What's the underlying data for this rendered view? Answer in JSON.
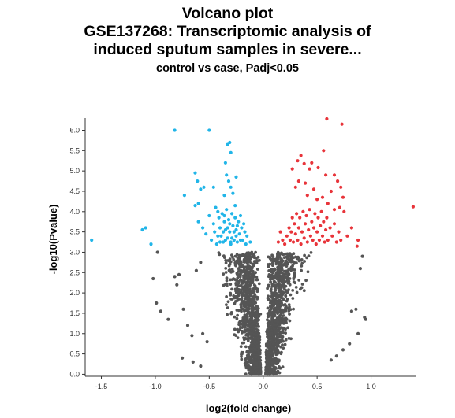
{
  "chart_data": {
    "type": "scatter",
    "title_lines": [
      "Volcano plot",
      "GSE137268: Transcriptomic analysis of",
      "induced sputum samples in severe..."
    ],
    "subtitle": "control vs case, Padj<0.05",
    "xlabel": "log2(fold change)",
    "ylabel": "-log10(Pvalue)",
    "xlim": [
      -1.65,
      1.42
    ],
    "ylim": [
      -0.05,
      6.3
    ],
    "x_ticks": [
      "-1.5",
      "-1.0",
      "-0.5",
      "0.0",
      "0.5",
      "1.0"
    ],
    "y_ticks": [
      "0.0",
      "0.5",
      "1.0",
      "1.5",
      "2.0",
      "2.5",
      "3.0",
      "3.5",
      "4.0",
      "4.5",
      "5.0",
      "5.5",
      "6.0"
    ],
    "series": [
      {
        "color": "#21b5e8",
        "points": [
          [
            -1.59,
            3.3
          ],
          [
            -1.12,
            3.55
          ],
          [
            -1.09,
            3.6
          ],
          [
            -1.04,
            3.2
          ],
          [
            -0.82,
            6.0
          ],
          [
            -0.5,
            6.0
          ],
          [
            -0.73,
            4.4
          ],
          [
            -0.63,
            4.95
          ],
          [
            -0.61,
            4.75
          ],
          [
            -0.58,
            4.55
          ],
          [
            -0.55,
            4.6
          ],
          [
            -0.63,
            4.15
          ],
          [
            -0.6,
            4.2
          ],
          [
            -0.46,
            4.6
          ],
          [
            -0.44,
            4.1
          ],
          [
            -0.42,
            4.0
          ],
          [
            -0.34,
            4.9
          ],
          [
            -0.32,
            4.75
          ],
          [
            -0.3,
            4.6
          ],
          [
            -0.36,
            4.4
          ],
          [
            -0.35,
            5.2
          ],
          [
            -0.33,
            5.65
          ],
          [
            -0.31,
            5.7
          ],
          [
            -0.3,
            5.45
          ],
          [
            -0.28,
            4.45
          ],
          [
            -0.26,
            4.15
          ],
          [
            -0.25,
            4.85
          ],
          [
            -0.6,
            3.75
          ],
          [
            -0.56,
            3.6
          ],
          [
            -0.53,
            3.45
          ],
          [
            -0.5,
            3.9
          ],
          [
            -0.48,
            3.3
          ],
          [
            -0.46,
            3.7
          ],
          [
            -0.45,
            3.5
          ],
          [
            -0.43,
            3.2
          ],
          [
            -0.41,
            3.85
          ],
          [
            -0.4,
            3.6
          ],
          [
            -0.39,
            3.4
          ],
          [
            -0.38,
            3.95
          ],
          [
            -0.37,
            3.25
          ],
          [
            -0.36,
            3.75
          ],
          [
            -0.35,
            3.55
          ],
          [
            -0.34,
            4.05
          ],
          [
            -0.33,
            3.35
          ],
          [
            -0.32,
            3.8
          ],
          [
            -0.31,
            3.5
          ],
          [
            -0.3,
            3.2
          ],
          [
            -0.29,
            3.95
          ],
          [
            -0.28,
            3.65
          ],
          [
            -0.27,
            3.3
          ],
          [
            -0.26,
            3.85
          ],
          [
            -0.25,
            3.55
          ],
          [
            -0.24,
            3.25
          ],
          [
            -0.23,
            3.75
          ],
          [
            -0.22,
            3.45
          ],
          [
            -0.21,
            3.9
          ],
          [
            -0.2,
            3.6
          ],
          [
            -0.19,
            3.3
          ],
          [
            -0.18,
            3.7
          ],
          [
            -0.17,
            3.5
          ],
          [
            -0.16,
            3.2
          ],
          [
            -0.15,
            3.4
          ],
          [
            -0.12,
            3.25
          ],
          [
            -0.3,
            3.25
          ],
          [
            -0.35,
            3.3
          ],
          [
            -0.42,
            3.4
          ],
          [
            -0.27,
            3.5
          ],
          [
            -0.33,
            3.6
          ],
          [
            -0.25,
            3.4
          ],
          [
            -0.37,
            3.5
          ],
          [
            -0.21,
            3.3
          ],
          [
            -0.4,
            3.25
          ],
          [
            -0.31,
            3.7
          ],
          [
            -0.29,
            3.35
          ],
          [
            -0.36,
            3.9
          ],
          [
            -0.24,
            3.65
          ]
        ]
      },
      {
        "color": "#e8343a",
        "points": [
          [
            0.59,
            6.28
          ],
          [
            0.73,
            6.15
          ],
          [
            0.56,
            5.5
          ],
          [
            0.45,
            5.2
          ],
          [
            0.43,
            5.05
          ],
          [
            0.51,
            5.08
          ],
          [
            0.58,
            4.9
          ],
          [
            0.66,
            4.9
          ],
          [
            0.27,
            5.05
          ],
          [
            0.32,
            5.25
          ],
          [
            0.35,
            5.38
          ],
          [
            0.38,
            5.18
          ],
          [
            0.3,
            4.6
          ],
          [
            0.33,
            4.75
          ],
          [
            0.39,
            4.7
          ],
          [
            0.41,
            4.4
          ],
          [
            0.47,
            4.55
          ],
          [
            0.5,
            4.3
          ],
          [
            0.55,
            4.35
          ],
          [
            0.6,
            4.2
          ],
          [
            0.63,
            4.5
          ],
          [
            0.69,
            4.75
          ],
          [
            0.72,
            4.6
          ],
          [
            0.74,
            4.35
          ],
          [
            0.71,
            4.1
          ],
          [
            0.66,
            4.05
          ],
          [
            0.75,
            4.0
          ],
          [
            0.88,
            3.3
          ],
          [
            0.87,
            3.15
          ],
          [
            1.39,
            4.12
          ],
          [
            0.82,
            3.6
          ],
          [
            0.78,
            3.4
          ],
          [
            0.2,
            3.2
          ],
          [
            0.22,
            3.4
          ],
          [
            0.24,
            3.6
          ],
          [
            0.25,
            3.3
          ],
          [
            0.26,
            3.5
          ],
          [
            0.27,
            3.85
          ],
          [
            0.28,
            3.25
          ],
          [
            0.29,
            3.7
          ],
          [
            0.3,
            3.45
          ],
          [
            0.31,
            3.95
          ],
          [
            0.32,
            3.3
          ],
          [
            0.33,
            3.6
          ],
          [
            0.34,
            3.85
          ],
          [
            0.35,
            3.2
          ],
          [
            0.36,
            3.5
          ],
          [
            0.37,
            4.0
          ],
          [
            0.38,
            3.35
          ],
          [
            0.39,
            3.7
          ],
          [
            0.4,
            3.9
          ],
          [
            0.41,
            3.25
          ],
          [
            0.42,
            3.55
          ],
          [
            0.43,
            4.05
          ],
          [
            0.44,
            3.4
          ],
          [
            0.45,
            3.75
          ],
          [
            0.46,
            3.3
          ],
          [
            0.47,
            3.6
          ],
          [
            0.48,
            3.95
          ],
          [
            0.49,
            3.2
          ],
          [
            0.5,
            3.5
          ],
          [
            0.51,
            3.85
          ],
          [
            0.52,
            3.3
          ],
          [
            0.53,
            3.65
          ],
          [
            0.54,
            4.0
          ],
          [
            0.55,
            3.4
          ],
          [
            0.56,
            3.75
          ],
          [
            0.57,
            3.25
          ],
          [
            0.58,
            3.55
          ],
          [
            0.59,
            3.85
          ],
          [
            0.6,
            3.3
          ],
          [
            0.62,
            3.6
          ],
          [
            0.64,
            3.4
          ],
          [
            0.66,
            3.7
          ],
          [
            0.68,
            3.25
          ],
          [
            0.7,
            3.5
          ],
          [
            0.72,
            3.3
          ],
          [
            0.18,
            3.3
          ],
          [
            0.16,
            3.5
          ],
          [
            0.14,
            3.25
          ]
        ]
      },
      {
        "color": "#555555",
        "points": [
          [
            -0.98,
            3.0
          ],
          [
            -1.02,
            2.35
          ],
          [
            -0.99,
            1.75
          ],
          [
            -0.95,
            1.55
          ],
          [
            -0.88,
            1.35
          ],
          [
            -0.82,
            2.4
          ],
          [
            -0.8,
            2.2
          ],
          [
            -0.78,
            2.45
          ],
          [
            -0.74,
            1.6
          ],
          [
            -0.7,
            1.2
          ],
          [
            -0.66,
            0.95
          ],
          [
            -0.62,
            2.55
          ],
          [
            -0.58,
            2.75
          ],
          [
            -0.56,
            1.0
          ],
          [
            -0.52,
            0.8
          ],
          [
            0.82,
            1.55
          ],
          [
            0.86,
            1.6
          ],
          [
            0.9,
            2.6
          ],
          [
            0.92,
            2.9
          ],
          [
            0.94,
            1.4
          ],
          [
            0.95,
            1.35
          ],
          [
            0.88,
            1.0
          ],
          [
            0.8,
            0.75
          ],
          [
            0.74,
            0.6
          ],
          [
            -0.75,
            0.4
          ],
          [
            -0.65,
            0.3
          ],
          [
            -0.58,
            0.2
          ],
          [
            0.68,
            0.45
          ],
          [
            0.63,
            0.35
          ]
        ]
      }
    ],
    "background_cloud": {
      "color": "#555555",
      "description_count": 1900,
      "ymax": 3.0,
      "cutoff_y": 3.0
    }
  }
}
